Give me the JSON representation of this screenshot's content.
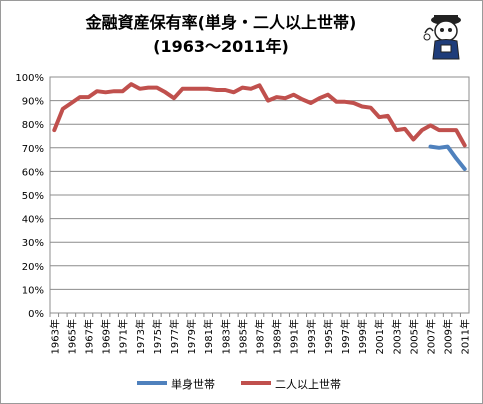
{
  "chart_data": {
    "type": "line",
    "title": "金融資産保有率(単身・二人以上世帯)",
    "subtitle": "(1963〜2011年)",
    "xlabel": "",
    "ylabel": "",
    "ylim": [
      0,
      100
    ],
    "y_ticks": [
      "0%",
      "10%",
      "20%",
      "30%",
      "40%",
      "50%",
      "60%",
      "70%",
      "80%",
      "90%",
      "100%"
    ],
    "x": [
      1963,
      1964,
      1965,
      1966,
      1967,
      1968,
      1969,
      1970,
      1971,
      1972,
      1973,
      1974,
      1975,
      1976,
      1977,
      1978,
      1979,
      1980,
      1981,
      1982,
      1983,
      1984,
      1985,
      1986,
      1987,
      1988,
      1989,
      1990,
      1991,
      1992,
      1993,
      1994,
      1995,
      1996,
      1997,
      1998,
      1999,
      2000,
      2001,
      2002,
      2003,
      2004,
      2005,
      2006,
      2007,
      2008,
      2009,
      2010,
      2011
    ],
    "x_tick_labels": [
      "1963年",
      "1965年",
      "1967年",
      "1969年",
      "1971年",
      "1973年",
      "1975年",
      "1977年",
      "1979年",
      "1981年",
      "1983年",
      "1985年",
      "1987年",
      "1989年",
      "1991年",
      "1993年",
      "1995年",
      "1997年",
      "1999年",
      "2001年",
      "2003年",
      "2005年",
      "2007年",
      "2009年",
      "2011年"
    ],
    "grid": true,
    "legend_position": "bottom",
    "series": [
      {
        "name": "単身世帯",
        "color": "#4f81bd",
        "values": [
          null,
          null,
          null,
          null,
          null,
          null,
          null,
          null,
          null,
          null,
          null,
          null,
          null,
          null,
          null,
          null,
          null,
          null,
          null,
          null,
          null,
          null,
          null,
          null,
          null,
          null,
          null,
          null,
          null,
          null,
          null,
          null,
          null,
          null,
          null,
          null,
          null,
          null,
          null,
          null,
          null,
          null,
          null,
          null,
          70.5,
          70.0,
          70.5,
          65.5,
          61.0
        ]
      },
      {
        "name": "二人以上世帯",
        "color": "#c0504d",
        "values": [
          77.5,
          86.5,
          89.0,
          91.5,
          91.5,
          94.0,
          93.5,
          94.0,
          94.0,
          97.0,
          95.0,
          95.5,
          95.5,
          93.5,
          91.0,
          95.0,
          95.0,
          95.0,
          95.0,
          94.5,
          94.5,
          93.5,
          95.5,
          95.0,
          96.5,
          90.0,
          91.5,
          91.0,
          92.5,
          90.5,
          89.0,
          91.0,
          92.5,
          89.5,
          89.5,
          89.0,
          87.5,
          87.0,
          83.0,
          83.5,
          77.5,
          78.0,
          73.5,
          77.5,
          79.5,
          77.5,
          77.5,
          77.5,
          71.0
        ]
      }
    ]
  }
}
